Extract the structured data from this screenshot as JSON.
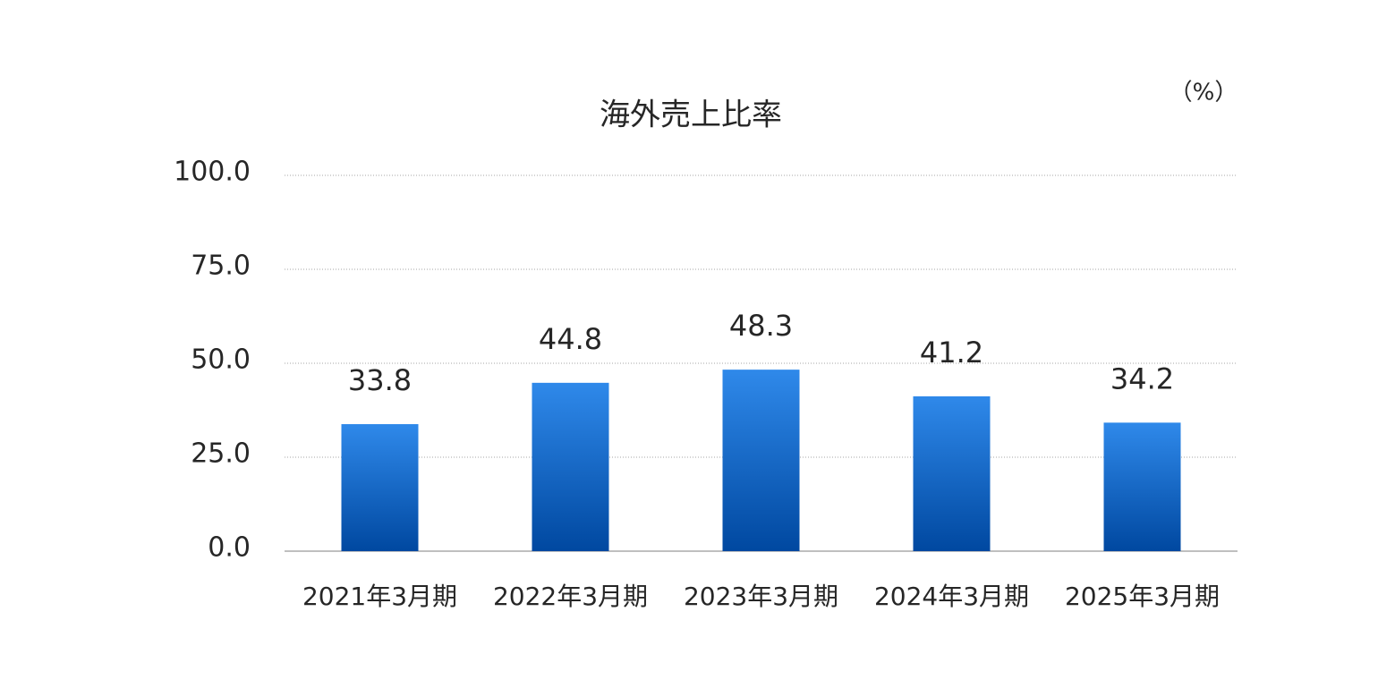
{
  "chart_data": {
    "type": "bar",
    "title": "海外売上比率",
    "unit": "（%）",
    "categories": [
      "2021年3月期",
      "2022年3月期",
      "2023年3月期",
      "2024年3月期",
      "2025年3月期"
    ],
    "values": [
      33.8,
      44.8,
      48.3,
      41.2,
      34.2
    ],
    "gradient": [
      "#2f89ea",
      "#0048a0"
    ],
    "ylim": [
      0,
      100
    ],
    "yticks": [
      {
        "value": 0,
        "label": "0.0"
      },
      {
        "value": 25,
        "label": "25.0"
      },
      {
        "value": 50,
        "label": "50.0"
      },
      {
        "value": 75,
        "label": "75.0"
      },
      {
        "value": 100,
        "label": "100.0"
      }
    ],
    "grid": true
  }
}
